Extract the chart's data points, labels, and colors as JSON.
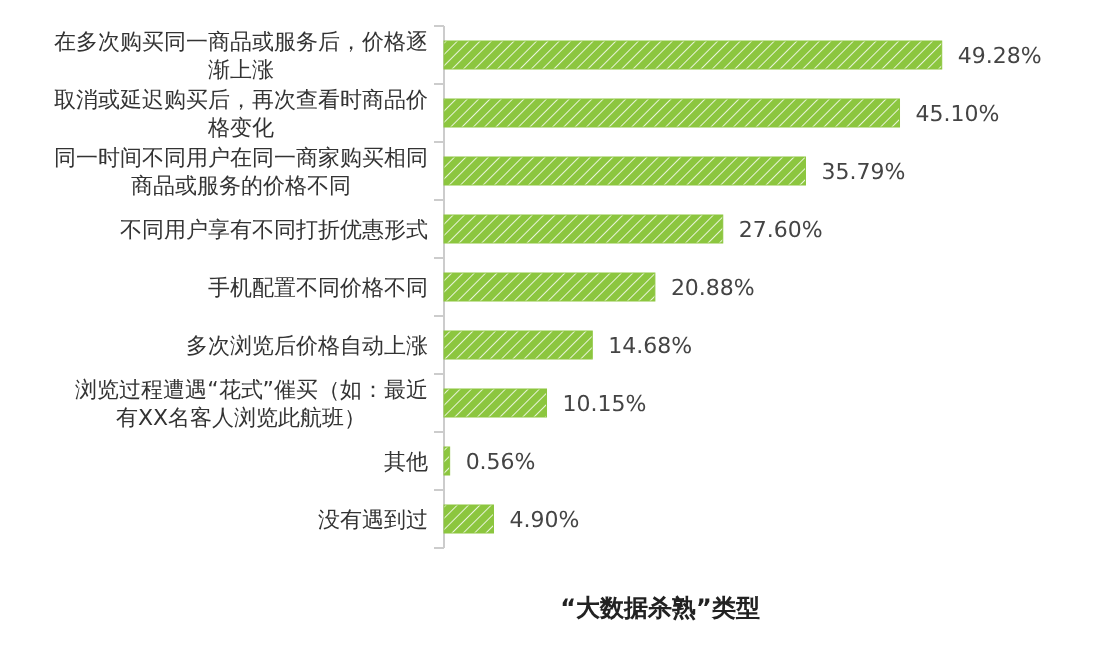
{
  "chart_data": {
    "type": "bar",
    "orientation": "horizontal",
    "title": "“大数据杀熟”类型",
    "categories": [
      "在多次购买同一商品或服务后，价格逐渐上涨",
      "取消或延迟购买后，再次查看时商品价格变化",
      "同一时间不同用户在同一商家购买相同商品或服务的价格不同",
      "不同用户享有不同打折优惠形式",
      "手机配置不同价格不同",
      "多次浏览后价格自动上涨",
      "浏览过程遭遇“花式”催买（如：最近有XX名客人浏览此航班）",
      "其他",
      "没有遇到过"
    ],
    "values": [
      49.28,
      45.1,
      35.79,
      27.6,
      20.88,
      14.68,
      10.15,
      0.56,
      4.9
    ],
    "value_labels": [
      "49.28%",
      "45.10%",
      "35.79%",
      "27.60%",
      "20.88%",
      "14.68%",
      "10.15%",
      "0.56%",
      "4.90%"
    ],
    "color": "#8cc63f",
    "tick_labels": "y"
  }
}
